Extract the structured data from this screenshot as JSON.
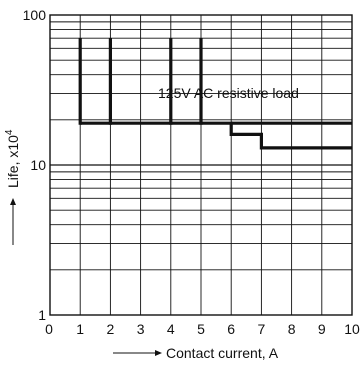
{
  "chart_data": {
    "type": "line",
    "title": "",
    "xlabel": "Contact current, A",
    "ylabel": "Life, x10",
    "ylabel_superscript": "4",
    "xlim": [
      0,
      10
    ],
    "ylim": [
      1,
      100
    ],
    "y_scale": "log",
    "grid": true,
    "x_ticks": [
      "0",
      "1",
      "2",
      "3",
      "4",
      "5",
      "6",
      "7",
      "8",
      "9",
      "10"
    ],
    "y_ticks": [
      "1",
      "10",
      "100"
    ],
    "annotation": "125V AC resistive load",
    "series": [
      {
        "points": [
          [
            1,
            19
          ],
          [
            6,
            19
          ],
          [
            6,
            16
          ],
          [
            7,
            16
          ],
          [
            7,
            13
          ],
          [
            10,
            13
          ]
        ],
        "upper_step": [
          [
            6,
            19
          ],
          [
            10,
            19
          ]
        ],
        "spikes": [
          {
            "x": 1,
            "y": 70
          },
          {
            "x": 2,
            "y": 70
          },
          {
            "x": 4,
            "y": 70
          },
          {
            "x": 5,
            "y": 70
          }
        ]
      }
    ]
  }
}
